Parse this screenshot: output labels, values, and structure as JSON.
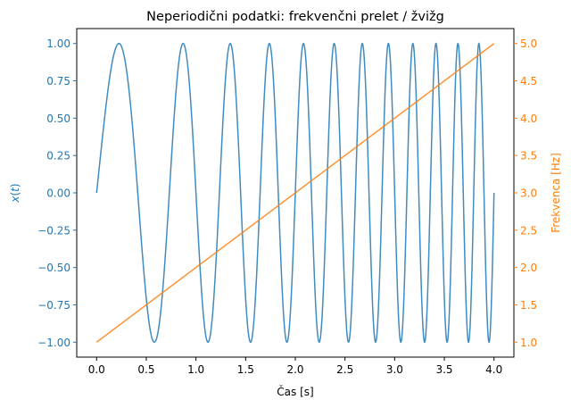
{
  "chart_data": {
    "type": "line",
    "title": "Neperiodični podatki: frekvenčni prelet / žvižg",
    "xlabel": "Čas [s]",
    "ylabel_left_prefix": "x",
    "ylabel_left_var": "t",
    "ylabel_right": "Frekvenca [Hz]",
    "xlim": [
      -0.2,
      4.2
    ],
    "ylim_left": [
      -1.1,
      1.1
    ],
    "ylim_right": [
      0.8,
      5.2
    ],
    "x_ticks": [
      "0.0",
      "0.5",
      "1.0",
      "1.5",
      "2.0",
      "2.5",
      "3.0",
      "3.5",
      "4.0"
    ],
    "y_left_ticks": [
      "1.00",
      "0.75",
      "0.50",
      "0.25",
      "0.00",
      "−0.25",
      "−0.50",
      "−0.75",
      "−1.00"
    ],
    "y_right_ticks": [
      "5.0",
      "4.5",
      "4.0",
      "3.5",
      "3.0",
      "2.5",
      "2.0",
      "1.5",
      "1.0"
    ],
    "colors": {
      "signal": "#1f77b4",
      "frequency": "#ff7f0e",
      "frame": "#000000"
    },
    "series": [
      {
        "axis": "left",
        "kind": "chirp",
        "x_range": [
          0,
          4
        ],
        "f0_hz": 1.0,
        "f1_hz": 5.0,
        "formula": "sin(2π(f0·t + (f1−f0)/(2T)·t²))"
      },
      {
        "axis": "right",
        "kind": "linear",
        "x": [
          0,
          4
        ],
        "y": [
          1.0,
          5.0
        ]
      }
    ]
  }
}
